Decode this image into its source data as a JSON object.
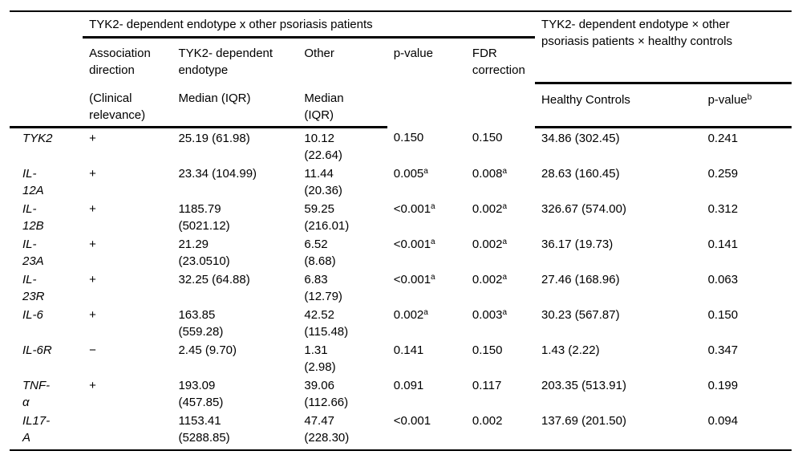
{
  "document": {
    "background": "#ffffff",
    "text_color": "#000000",
    "rule_color": "#000000"
  },
  "table": {
    "groups": [
      {
        "title": "TYK2- dependent endotype x other psoriasis patients"
      },
      {
        "title": "TYK2- dependent endotype × other\npsoriasis patients × healthy controls"
      }
    ],
    "headers": {
      "association": {
        "line1": "Association\ndirection",
        "line2": "(Clinical\nrelevance)"
      },
      "endotype": {
        "line1": "TYK2- dependent\nendotype",
        "line2": "Median (IQR)"
      },
      "other": {
        "line1": "Other",
        "line2": "Median\n(IQR)"
      },
      "p_value": {
        "label": "p-value"
      },
      "fdr": {
        "label": "FDR\ncorrection"
      },
      "healthy": {
        "label": "Healthy Controls"
      },
      "p_value_b": {
        "label": "p-value",
        "sup": "b"
      }
    },
    "rows": [
      {
        "gene": "TYK2",
        "assoc": "+",
        "endotype": "25.19 (61.98)",
        "other": "10.12\n(22.64)",
        "p": "0.150",
        "p_sup": "",
        "fdr": "0.150",
        "fdr_sup": "",
        "healthy": "34.86 (302.45)",
        "p_b": "0.241"
      },
      {
        "gene": "IL-\n12A",
        "assoc": "+",
        "endotype": "23.34 (104.99)",
        "other": "11.44\n(20.36)",
        "p": "0.005",
        "p_sup": "a",
        "fdr": "0.008",
        "fdr_sup": "a",
        "healthy": "28.63 (160.45)",
        "p_b": "0.259"
      },
      {
        "gene": "IL-\n12B",
        "assoc": "+",
        "endotype": "1185.79\n(5021.12)",
        "other": "59.25\n(216.01)",
        "p": "<0.001",
        "p_sup": "a",
        "fdr": "0.002",
        "fdr_sup": "a",
        "healthy": "326.67 (574.00)",
        "p_b": "0.312"
      },
      {
        "gene": "IL-\n23A",
        "assoc": "+",
        "endotype": "21.29\n(23.0510)",
        "other": "6.52\n(8.68)",
        "p": "<0.001",
        "p_sup": "a",
        "fdr": "0.002",
        "fdr_sup": "a",
        "healthy": "36.17 (19.73)",
        "p_b": "0.141"
      },
      {
        "gene": "IL-\n23R",
        "assoc": "+",
        "endotype": "32.25 (64.88)",
        "other": "6.83\n(12.79)",
        "p": "<0.001",
        "p_sup": "a",
        "fdr": "0.002",
        "fdr_sup": "a",
        "healthy": "27.46 (168.96)",
        "p_b": "0.063"
      },
      {
        "gene": "IL-6",
        "assoc": "+",
        "endotype": "163.85\n(559.28)",
        "other": "42.52\n(115.48)",
        "p": "0.002",
        "p_sup": "a",
        "fdr": "0.003",
        "fdr_sup": "a",
        "healthy": "30.23 (567.87)",
        "p_b": "0.150"
      },
      {
        "gene": "IL-6R",
        "assoc": "−",
        "endotype": "2.45 (9.70)",
        "other": "1.31\n(2.98)",
        "p": "0.141",
        "p_sup": "",
        "fdr": "0.150",
        "fdr_sup": "",
        "healthy": "1.43 (2.22)",
        "p_b": "0.347"
      },
      {
        "gene": "TNF-\nα",
        "assoc": "+",
        "endotype": "193.09\n(457.85)",
        "other": "39.06\n(112.66)",
        "p": "0.091",
        "p_sup": "",
        "fdr": "0.117",
        "fdr_sup": "",
        "healthy": "203.35 (513.91)",
        "p_b": "0.199"
      },
      {
        "gene": "IL17-\nA",
        "assoc": "",
        "endotype": "1153.41\n(5288.85)",
        "other": "47.47\n(228.30)",
        "p": "<0.001",
        "p_sup": "",
        "fdr": "0.002",
        "fdr_sup": "",
        "healthy": "137.69 (201.50)",
        "p_b": "0.094"
      }
    ]
  }
}
